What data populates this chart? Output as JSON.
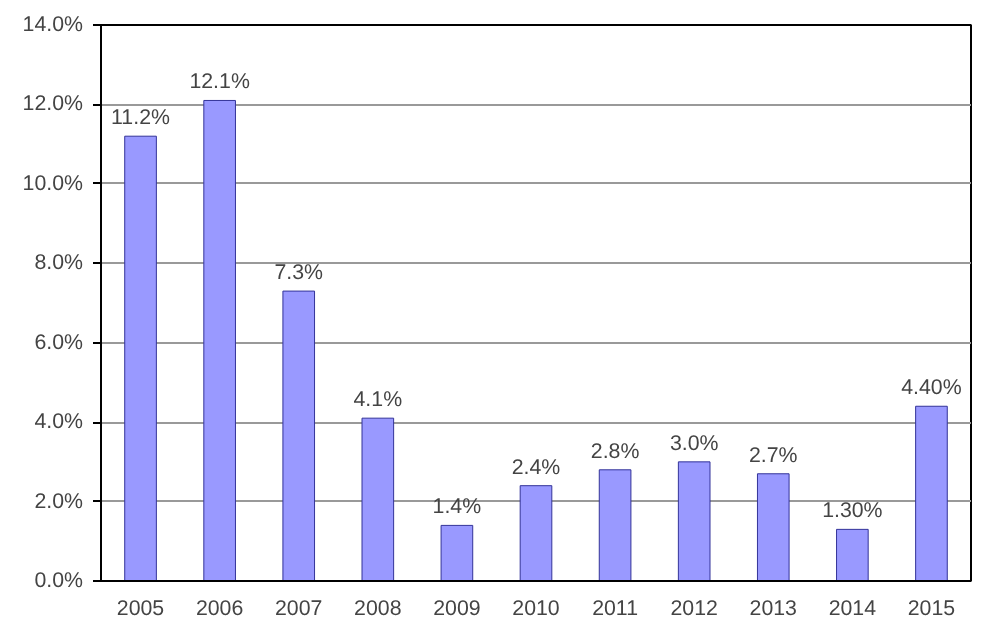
{
  "chart_data": {
    "type": "bar",
    "categories": [
      "2005",
      "2006",
      "2007",
      "2008",
      "2009",
      "2010",
      "2011",
      "2012",
      "2013",
      "2014",
      "2015"
    ],
    "values": [
      11.2,
      12.1,
      7.3,
      4.1,
      1.4,
      2.4,
      2.8,
      3.0,
      2.7,
      1.3,
      4.4
    ],
    "value_labels": [
      "11.2%",
      "12.1%",
      "7.3%",
      "4.1%",
      "1.4%",
      "2.4%",
      "2.8%",
      "3.0%",
      "2.7%",
      "1.30%",
      "4.40%"
    ],
    "color": "#9999ff",
    "ylim": [
      0,
      14
    ],
    "yticks": [
      {
        "value": 0,
        "label": "0.0%"
      },
      {
        "value": 2,
        "label": "2.0%"
      },
      {
        "value": 4,
        "label": "4.0%"
      },
      {
        "value": 6,
        "label": "6.0%"
      },
      {
        "value": 8,
        "label": "8.0%"
      },
      {
        "value": 10,
        "label": "10.0%"
      },
      {
        "value": 12,
        "label": "12.0%"
      },
      {
        "value": 14,
        "label": "14.0%"
      }
    ],
    "grid": "y"
  }
}
